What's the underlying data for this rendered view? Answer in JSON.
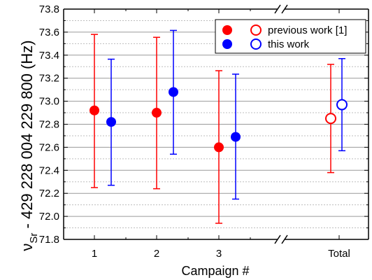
{
  "chart_data": {
    "type": "scatter",
    "title": "",
    "xlabel": "Campaign #",
    "ylabel": {
      "main": "ν",
      "sub": "Sr",
      "rest": " - 429 228 004 229 800 (Hz)"
    },
    "ylim": [
      71.8,
      73.8
    ],
    "yticks": [
      "71.8",
      "72.0",
      "72.2",
      "72.4",
      "72.6",
      "72.8",
      "73.0",
      "73.2",
      "73.4",
      "73.6",
      "73.8"
    ],
    "categories": [
      "1",
      "2",
      "3",
      "Total"
    ],
    "axis_break": "between 3 and Total",
    "grid": true,
    "legend_position": "top-right",
    "colors": {
      "previous": "#ff0000",
      "this": "#0000ff"
    },
    "series": [
      {
        "name": "previous work [1]",
        "color": "#ff0000",
        "points": [
          {
            "category": "1",
            "y": 72.92,
            "err_low": 72.25,
            "err_high": 73.58,
            "filled": true
          },
          {
            "category": "2",
            "y": 72.9,
            "err_low": 72.24,
            "err_high": 73.555,
            "filled": true
          },
          {
            "category": "3",
            "y": 72.6,
            "err_low": 71.94,
            "err_high": 73.265,
            "filled": true
          },
          {
            "category": "Total",
            "y": 72.85,
            "err_low": 72.38,
            "err_high": 73.32,
            "filled": false
          }
        ]
      },
      {
        "name": "this work",
        "color": "#0000ff",
        "points": [
          {
            "category": "1",
            "y": 72.82,
            "err_low": 72.27,
            "err_high": 73.365,
            "filled": true
          },
          {
            "category": "2",
            "y": 73.08,
            "err_low": 72.54,
            "err_high": 73.615,
            "filled": true
          },
          {
            "category": "3",
            "y": 72.69,
            "err_low": 72.15,
            "err_high": 73.235,
            "filled": true
          },
          {
            "category": "Total",
            "y": 72.97,
            "err_low": 72.57,
            "err_high": 73.37,
            "filled": false
          }
        ]
      }
    ]
  }
}
